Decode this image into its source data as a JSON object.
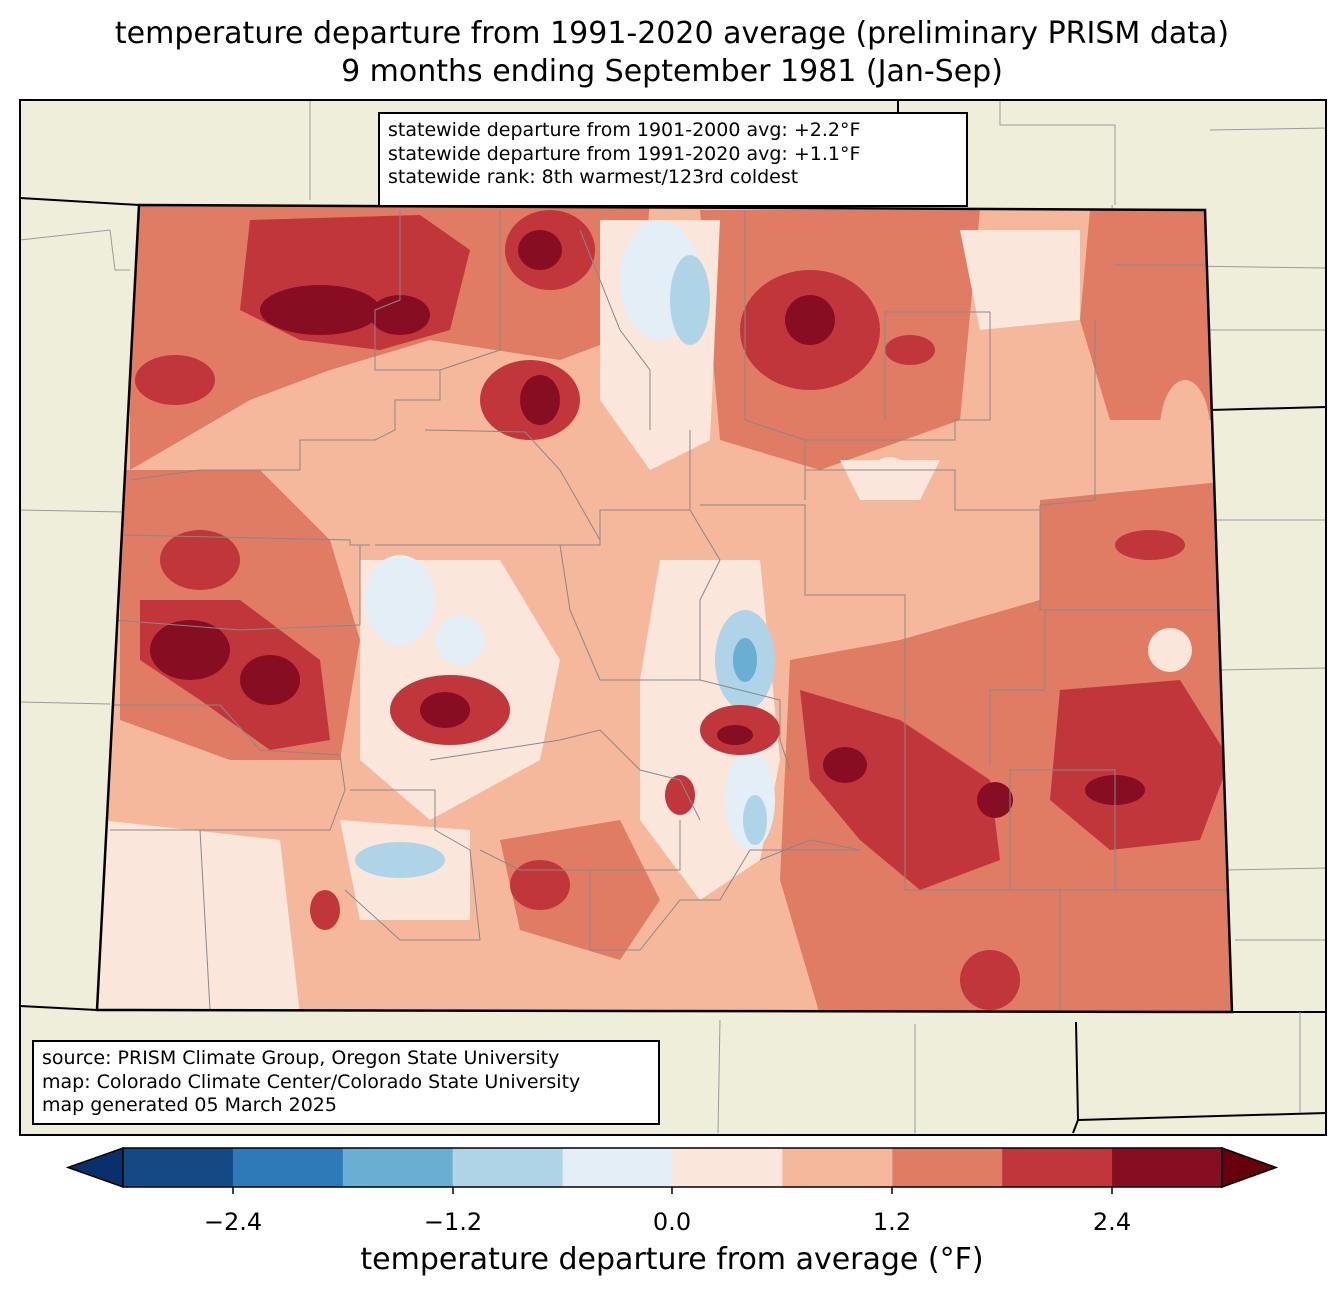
{
  "title": {
    "line1": "temperature departure from 1991-2020 average (preliminary PRISM data)",
    "line2": "9 months ending September 1981 (Jan-Sep)"
  },
  "stats": {
    "line1": "statewide departure from 1901-2000 avg: +2.2°F",
    "line2": "statewide departure from 1991-2020 avg: +1.1°F",
    "line3": "statewide rank: 8th warmest/123rd coldest"
  },
  "source": {
    "line1": "source: PRISM Climate Group, Oregon State University",
    "line2": "map: Colorado Climate Center/Colorado State University",
    "line3": "map generated 05 March 2025"
  },
  "colorbar": {
    "label": "temperature departure from average (°F)",
    "ticks": [
      "−2.4",
      "−1.2",
      "0.0",
      "1.2",
      "2.4"
    ],
    "colors": [
      "#08306b",
      "#134a85",
      "#2e7ab8",
      "#6aaed3",
      "#b0d4e7",
      "#e3eef6",
      "#fbe6dc",
      "#f6b89c",
      "#e07b64",
      "#c1363a",
      "#870d23",
      "#67000d"
    ]
  },
  "colors": {
    "background_land": "#efeedb",
    "state_base": "#f6b89c"
  }
}
